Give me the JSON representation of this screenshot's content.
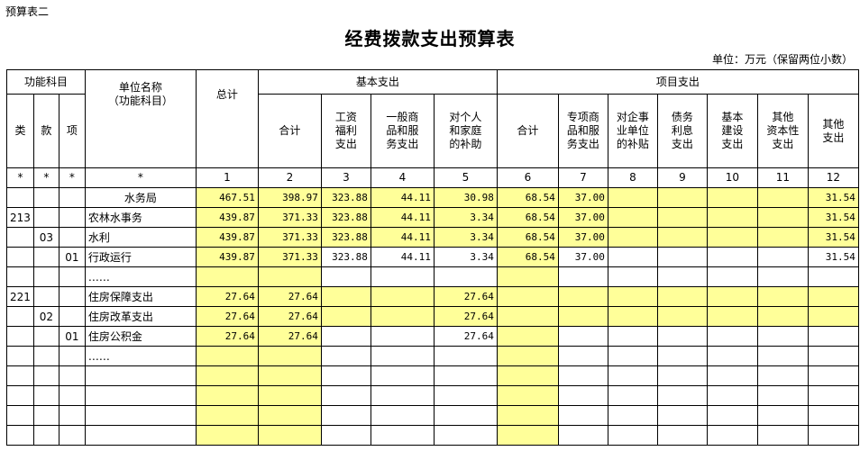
{
  "tag": "预算表二",
  "title": "经费拨款支出预算表",
  "unit": "单位：万元（保留两位小数）",
  "colors": {
    "highlight": "#ffff99"
  },
  "header": {
    "func": "功能科目",
    "lei": "类",
    "kuan": "款",
    "xiang": "项",
    "unitname": "单位名称\n（功能科目）",
    "total": "总计",
    "basic": "基本支出",
    "project": "项目支出",
    "basic_cols": [
      "合计",
      "工资\n福利\n支出",
      "一般商\n品和服\n务支出",
      "对个人\n和家庭\n的补助"
    ],
    "project_cols": [
      "合计",
      "专项商\n品和服\n务支出",
      "对企事\n业单位\n的补贴",
      "债务\n利息\n支出",
      "基本\n建设\n支出",
      "其他\n资本性\n支出",
      "其他\n支出"
    ],
    "index": [
      "*",
      "*",
      "*",
      "*",
      "1",
      "2",
      "3",
      "4",
      "5",
      "6",
      "7",
      "8",
      "9",
      "10",
      "11",
      "12"
    ]
  },
  "rows": [
    {
      "lei": "",
      "kuan": "",
      "xiang": "",
      "name": "水务局",
      "center": true,
      "v": [
        "467.51",
        "398.97",
        "323.88",
        "44.11",
        "30.98",
        "68.54",
        "37.00",
        "",
        "",
        "",
        "",
        "31.54"
      ],
      "y": "all"
    },
    {
      "lei": "213",
      "kuan": "",
      "xiang": "",
      "name": "农林水事务",
      "v": [
        "439.87",
        "371.33",
        "323.88",
        "44.11",
        "3.34",
        "68.54",
        "37.00",
        "",
        "",
        "",
        "",
        "31.54"
      ],
      "y": "all"
    },
    {
      "lei": "",
      "kuan": "03",
      "xiang": "",
      "name": "水利",
      "v": [
        "439.87",
        "371.33",
        "323.88",
        "44.11",
        "3.34",
        "68.54",
        "37.00",
        "",
        "",
        "",
        "",
        "31.54"
      ],
      "y": "all"
    },
    {
      "lei": "",
      "kuan": "",
      "xiang": "01",
      "name": "行政运行",
      "v": [
        "439.87",
        "371.33",
        "323.88",
        "44.11",
        "3.34",
        "68.54",
        "37.00",
        "",
        "",
        "",
        "",
        "31.54"
      ],
      "y": "part"
    },
    {
      "lei": "",
      "kuan": "",
      "xiang": "",
      "name": "……",
      "v": [
        "",
        "",
        "",
        "",
        "",
        "",
        "",
        "",
        "",
        "",
        "",
        ""
      ],
      "y": "part"
    },
    {
      "lei": "221",
      "kuan": "",
      "xiang": "",
      "name": "住房保障支出",
      "v": [
        "27.64",
        "27.64",
        "",
        "",
        "27.64",
        "",
        "",
        "",
        "",
        "",
        "",
        ""
      ],
      "y": "all"
    },
    {
      "lei": "",
      "kuan": "02",
      "xiang": "",
      "name": "住房改革支出",
      "v": [
        "27.64",
        "27.64",
        "",
        "",
        "27.64",
        "",
        "",
        "",
        "",
        "",
        "",
        ""
      ],
      "y": "all"
    },
    {
      "lei": "",
      "kuan": "",
      "xiang": "01",
      "name": "住房公积金",
      "v": [
        "27.64",
        "27.64",
        "",
        "",
        "27.64",
        "",
        "",
        "",
        "",
        "",
        "",
        ""
      ],
      "y": "part"
    },
    {
      "lei": "",
      "kuan": "",
      "xiang": "",
      "name": "……",
      "v": [
        "",
        "",
        "",
        "",
        "",
        "",
        "",
        "",
        "",
        "",
        "",
        ""
      ],
      "y": "part"
    },
    {
      "lei": "",
      "kuan": "",
      "xiang": "",
      "name": "",
      "v": [
        "",
        "",
        "",
        "",
        "",
        "",
        "",
        "",
        "",
        "",
        "",
        ""
      ],
      "y": "part"
    },
    {
      "lei": "",
      "kuan": "",
      "xiang": "",
      "name": "",
      "v": [
        "",
        "",
        "",
        "",
        "",
        "",
        "",
        "",
        "",
        "",
        "",
        ""
      ],
      "y": "part"
    },
    {
      "lei": "",
      "kuan": "",
      "xiang": "",
      "name": "",
      "v": [
        "",
        "",
        "",
        "",
        "",
        "",
        "",
        "",
        "",
        "",
        "",
        ""
      ],
      "y": "part"
    },
    {
      "lei": "",
      "kuan": "",
      "xiang": "",
      "name": "",
      "v": [
        "",
        "",
        "",
        "",
        "",
        "",
        "",
        "",
        "",
        "",
        "",
        ""
      ],
      "y": "part"
    }
  ]
}
